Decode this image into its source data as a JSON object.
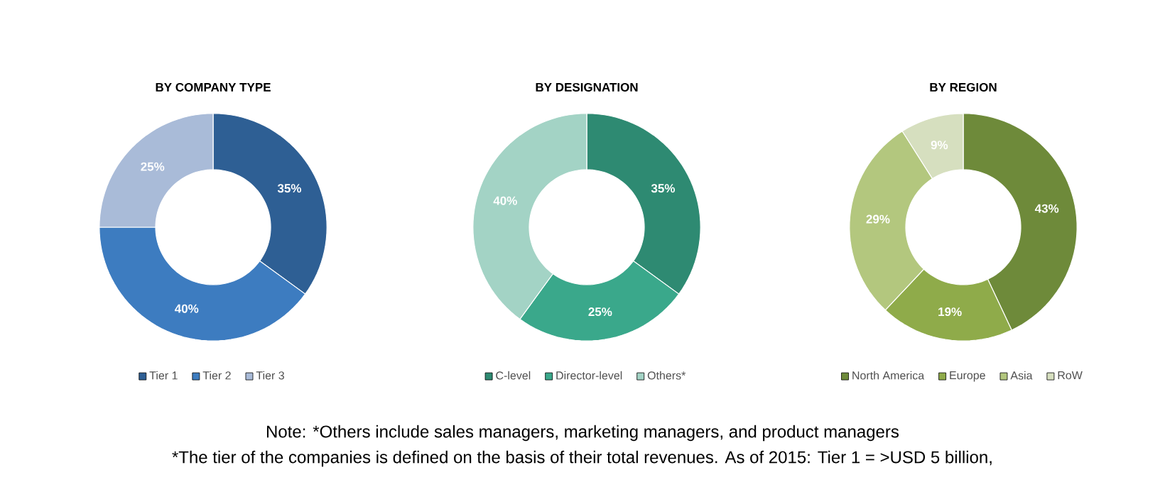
{
  "chart_data": [
    {
      "type": "donut",
      "title": "BY COMPANY TYPE",
      "categories": [
        "Tier 1",
        "Tier 2",
        "Tier 3"
      ],
      "values": [
        35,
        40,
        25
      ],
      "value_labels": [
        "35%",
        "40%",
        "25%"
      ],
      "colors": [
        "#2e5f94",
        "#3d7cc0",
        "#a9bbd8"
      ],
      "legend": "bottom"
    },
    {
      "type": "donut",
      "title": "BY DESIGNATION",
      "categories": [
        "C-level",
        "Director-level",
        "Others*"
      ],
      "values": [
        35,
        25,
        40
      ],
      "value_labels": [
        "35%",
        "25%",
        "40%"
      ],
      "colors": [
        "#2e8a72",
        "#3aa88b",
        "#a3d3c5"
      ],
      "legend": "bottom"
    },
    {
      "type": "donut",
      "title": "BY REGION",
      "categories": [
        "North America",
        "Europe",
        "Asia",
        "RoW"
      ],
      "values": [
        43,
        19,
        29,
        9
      ],
      "value_labels": [
        "43%",
        "19%",
        "29%",
        "9%"
      ],
      "colors": [
        "#6e8a3a",
        "#8fab4a",
        "#b3c77e",
        "#d6dfbf"
      ],
      "legend": "bottom"
    },
    {
      "type": "other",
      "annotations": [
        "Note: *Others include sales managers, marketing managers, and product managers",
        "*The tier of the companies is defined on the basis of their total revenues. As of 2015: Tier 1 = >USD 5 billion,"
      ]
    }
  ]
}
